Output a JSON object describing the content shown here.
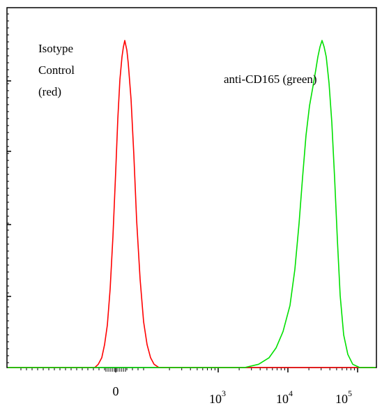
{
  "chart_data": {
    "type": "line",
    "title": "",
    "xlabel": "",
    "ylabel": "",
    "x_scale": "biexponential",
    "grid": false,
    "x_tick_labels": [
      {
        "base": "0",
        "exp": ""
      },
      {
        "base": "10",
        "exp": "3"
      },
      {
        "base": "10",
        "exp": "4"
      },
      {
        "base": "10",
        "exp": "5"
      }
    ],
    "annotations": {
      "isotype": [
        "Isotype",
        "Control",
        "(red)"
      ],
      "anti": "anti-CD165 (green)"
    },
    "ylim": [
      0,
      100
    ],
    "series": [
      {
        "name": "Isotype Control (red)",
        "color": "#ff0000",
        "points": [
          [
            -0.3,
            0
          ],
          [
            -0.25,
            1
          ],
          [
            -0.2,
            3
          ],
          [
            -0.16,
            7
          ],
          [
            -0.12,
            13
          ],
          [
            -0.08,
            24
          ],
          [
            -0.04,
            40
          ],
          [
            0.0,
            60
          ],
          [
            0.03,
            76
          ],
          [
            0.06,
            88
          ],
          [
            0.09,
            95
          ],
          [
            0.11,
            98
          ],
          [
            0.13,
            100
          ],
          [
            0.16,
            97
          ],
          [
            0.18,
            93
          ],
          [
            0.22,
            82
          ],
          [
            0.26,
            65
          ],
          [
            0.3,
            45
          ],
          [
            0.35,
            27
          ],
          [
            0.4,
            14
          ],
          [
            0.45,
            7
          ],
          [
            0.5,
            3
          ],
          [
            0.55,
            1
          ],
          [
            0.62,
            0
          ]
        ]
      },
      {
        "name": "anti-CD165 (green)",
        "color": "#00e000",
        "points": [
          [
            1.85,
            0
          ],
          [
            2.05,
            1
          ],
          [
            2.2,
            3
          ],
          [
            2.3,
            6
          ],
          [
            2.4,
            11
          ],
          [
            2.5,
            19
          ],
          [
            2.57,
            30
          ],
          [
            2.63,
            44
          ],
          [
            2.68,
            58
          ],
          [
            2.73,
            71
          ],
          [
            2.78,
            80
          ],
          [
            2.83,
            86
          ],
          [
            2.87,
            91
          ],
          [
            2.9,
            95
          ],
          [
            2.93,
            98
          ],
          [
            2.96,
            100
          ],
          [
            2.99,
            98
          ],
          [
            3.02,
            95
          ],
          [
            3.06,
            87
          ],
          [
            3.1,
            75
          ],
          [
            3.14,
            58
          ],
          [
            3.18,
            39
          ],
          [
            3.22,
            22
          ],
          [
            3.27,
            10
          ],
          [
            3.33,
            4
          ],
          [
            3.4,
            1
          ],
          [
            3.5,
            0
          ]
        ]
      }
    ]
  }
}
